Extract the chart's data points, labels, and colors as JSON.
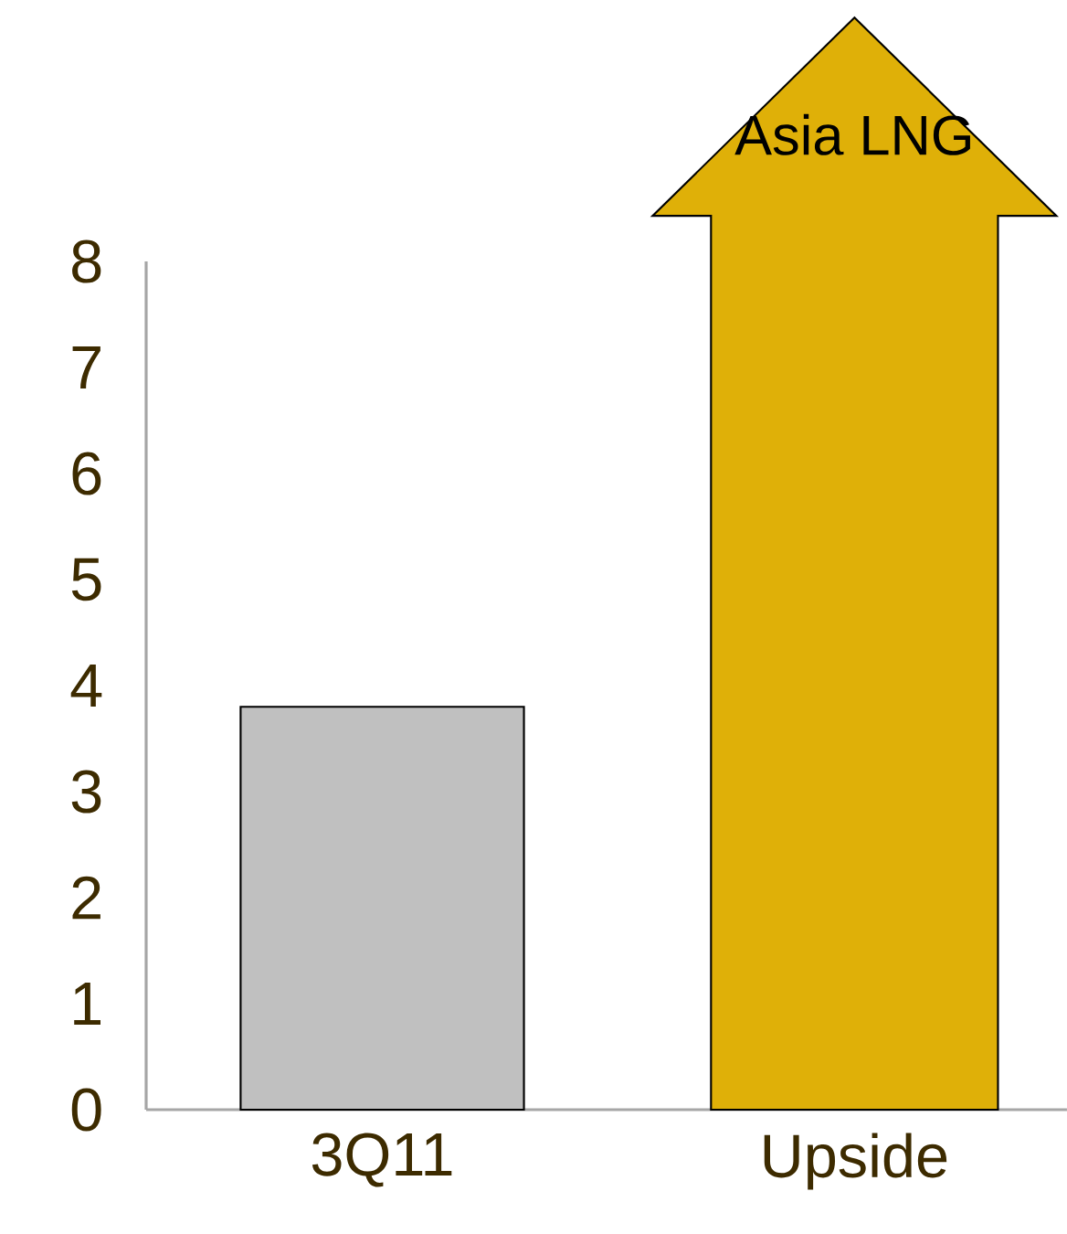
{
  "chart_data": {
    "type": "bar",
    "categories": [
      "3Q11",
      "Upside"
    ],
    "values": [
      3.8,
      null
    ],
    "colors": [
      "#c0c0c0",
      "#dfb008"
    ],
    "ylim": [
      0,
      8
    ],
    "yticks": [
      0,
      1,
      2,
      3,
      4,
      5,
      6,
      7,
      8
    ],
    "grid": false,
    "annotations": [
      "Asia LNG"
    ]
  }
}
